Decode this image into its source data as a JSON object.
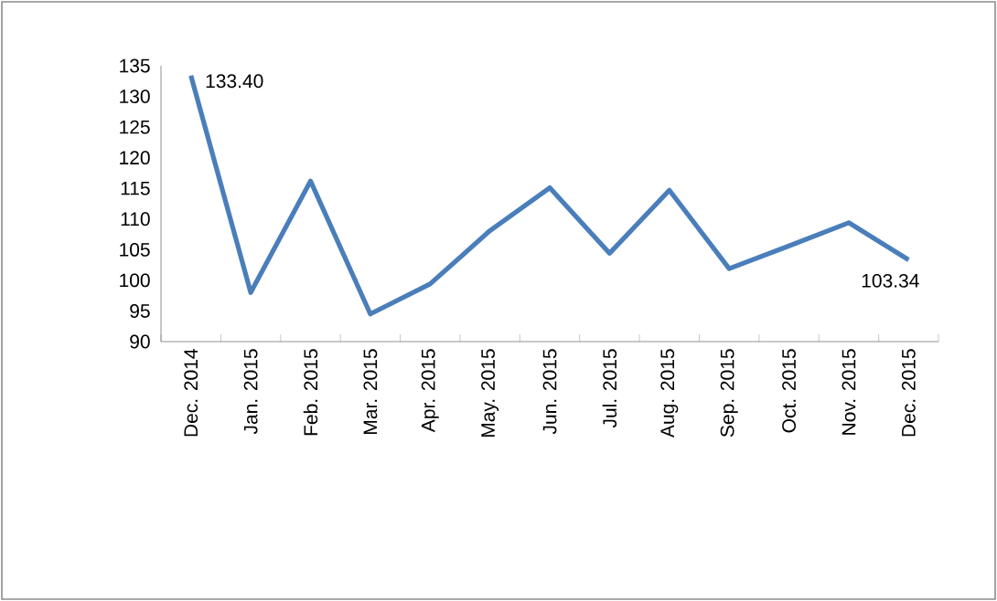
{
  "chart_data": {
    "type": "line",
    "categories": [
      "Dec. 2014",
      "Jan. 2015",
      "Feb. 2015",
      "Mar. 2015",
      "Apr. 2015",
      "May. 2015",
      "Jun. 2015",
      "Jul. 2015",
      "Aug. 2015",
      "Sep. 2015",
      "Oct. 2015",
      "Nov. 2015",
      "Dec. 2015"
    ],
    "series": [
      {
        "color": "#4a7ebb",
        "values": [
          133.4,
          98.0,
          116.2,
          94.5,
          99.4,
          108.1,
          115.1,
          104.4,
          114.7,
          101.9,
          105.6,
          109.4,
          103.34
        ],
        "value_labels": [
          "133.40",
          null,
          null,
          null,
          null,
          null,
          null,
          null,
          null,
          null,
          null,
          null,
          "103.34"
        ]
      }
    ],
    "ylim": [
      90,
      135
    ],
    "yticks": [
      90,
      95,
      100,
      105,
      110,
      115,
      120,
      125,
      130,
      135
    ],
    "marker": "none",
    "line_style": "solid"
  }
}
